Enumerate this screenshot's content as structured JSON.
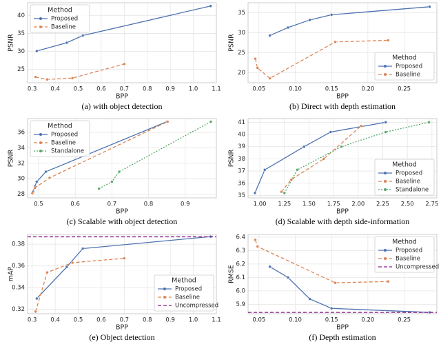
{
  "chart_data": [
    {
      "type": "line",
      "caption": "(a) with object detection",
      "xlabel": "BPP",
      "ylabel": "PSNR",
      "xlim": [
        0.28,
        1.1
      ],
      "ylim": [
        21.3,
        43.5
      ],
      "xticks": [
        0.3,
        0.4,
        0.5,
        0.6,
        0.7,
        0.8,
        0.9,
        {
          "value": 1,
          "label": "1.0"
        },
        1.1
      ],
      "yticks": [
        25,
        30,
        35,
        40
      ],
      "grid": true,
      "legend_title": "Method",
      "legend": "upper left",
      "series": [
        {
          "name": "Proposed",
          "color": "#4c72b0",
          "style": "solid",
          "x": [
            0.32,
            0.45,
            0.52,
            1.075
          ],
          "values": [
            30.1,
            32.4,
            34.4,
            42.6
          ]
        },
        {
          "name": "Baseline",
          "color": "#dd8452",
          "style": "dashed",
          "x": [
            0.315,
            0.365,
            0.475,
            0.7
          ],
          "values": [
            22.9,
            22.2,
            22.6,
            26.5
          ]
        }
      ]
    },
    {
      "type": "line",
      "caption": "(b) Direct with depth estimation",
      "xlabel": "BPP",
      "ylabel": "PSNR",
      "xlim": [
        0.035,
        0.295
      ],
      "ylim": [
        17.5,
        37.5
      ],
      "xticks": [
        0.05,
        {
          "value": 0.1,
          "label": "0.10"
        },
        0.15,
        {
          "value": 0.2,
          "label": "0.20"
        },
        0.25
      ],
      "yticks": [
        20,
        25,
        30,
        35
      ],
      "grid": true,
      "legend_title": "Method",
      "legend": "lower right",
      "series": [
        {
          "name": "Proposed",
          "color": "#4c72b0",
          "style": "solid",
          "x": [
            0.065,
            0.09,
            0.12,
            0.15,
            0.285
          ],
          "values": [
            29.3,
            31.3,
            33.2,
            34.5,
            36.5
          ]
        },
        {
          "name": "Baseline",
          "color": "#dd8452",
          "style": "dashed",
          "x": [
            0.045,
            0.048,
            0.065,
            0.155,
            0.228
          ],
          "values": [
            23.5,
            21.2,
            18.6,
            27.7,
            28.1
          ]
        }
      ]
    },
    {
      "type": "line",
      "caption": "(c) Scalable with object detection",
      "xlabel": "BPP",
      "ylabel": "PSNR",
      "xlim": [
        0.47,
        0.985
      ],
      "ylim": [
        27.5,
        37.8
      ],
      "xticks": [
        0.5,
        0.6,
        0.7,
        0.8,
        0.9
      ],
      "yticks": [
        28,
        30,
        32,
        34,
        36
      ],
      "grid": true,
      "legend_title": "Method",
      "legend": "upper left",
      "series": [
        {
          "name": "Proposed",
          "color": "#4c72b0",
          "style": "solid",
          "x": [
            0.485,
            0.49,
            0.495,
            0.52,
            0.85
          ],
          "values": [
            28.3,
            29.0,
            29.6,
            30.9,
            37.4
          ]
        },
        {
          "name": "Baseline",
          "color": "#dd8452",
          "style": "dashed",
          "x": [
            0.483,
            0.49,
            0.53,
            0.852
          ],
          "values": [
            28.1,
            28.8,
            30.1,
            37.4
          ]
        },
        {
          "name": "Standalone",
          "color": "#55a868",
          "style": "dotted",
          "x": [
            0.665,
            0.7,
            0.72,
            0.97
          ],
          "values": [
            28.7,
            29.6,
            30.9,
            37.4
          ]
        }
      ]
    },
    {
      "type": "line",
      "caption": "(d) Scalable with depth side-information",
      "xlabel": "BPP",
      "ylabel": "PSNR",
      "xlim": [
        0.88,
        2.8
      ],
      "ylim": [
        34.8,
        41.3
      ],
      "xticks": [
        {
          "value": 1,
          "label": "1.00"
        },
        1.25,
        {
          "value": 1.5,
          "label": "1.50"
        },
        1.75,
        {
          "value": 2,
          "label": "2.00"
        },
        2.25,
        {
          "value": 2.5,
          "label": "2.50"
        },
        2.75
      ],
      "yticks": [
        35,
        36,
        37,
        38,
        39,
        40,
        41
      ],
      "grid": true,
      "legend_title": "Method",
      "legend": "lower right",
      "series": [
        {
          "name": "Proposed",
          "color": "#4c72b0",
          "style": "solid",
          "x": [
            0.95,
            1.05,
            1.45,
            1.72,
            2.28
          ],
          "values": [
            35.2,
            37.1,
            39.0,
            40.2,
            41.0
          ]
        },
        {
          "name": "Baseline",
          "color": "#dd8452",
          "style": "dashed",
          "x": [
            1.22,
            1.32,
            1.65,
            2.03
          ],
          "values": [
            35.3,
            36.3,
            38.0,
            40.7
          ]
        },
        {
          "name": "Standalone",
          "color": "#55a868",
          "style": "dotted",
          "x": [
            1.25,
            1.38,
            1.83,
            2.28,
            2.72
          ],
          "values": [
            35.2,
            37.1,
            39.0,
            40.2,
            41.0
          ]
        }
      ]
    },
    {
      "type": "line",
      "caption": "(e) Object detection",
      "xlabel": "BPP",
      "ylabel": "mAP",
      "xlim": [
        0.28,
        1.1
      ],
      "ylim": [
        0.316,
        0.389
      ],
      "xticks": [
        0.3,
        0.4,
        0.5,
        0.6,
        0.7,
        0.8,
        0.9,
        {
          "value": 1,
          "label": "1.0"
        },
        1.1
      ],
      "yticks": [
        0.32,
        0.34,
        0.36,
        0.38
      ],
      "grid": true,
      "legend_title": "Method",
      "legend": "lower right",
      "series": [
        {
          "name": "Proposed",
          "color": "#4c72b0",
          "style": "solid",
          "x": [
            0.32,
            0.45,
            0.52,
            1.075
          ],
          "values": [
            0.33,
            0.359,
            0.376,
            0.387
          ]
        },
        {
          "name": "Baseline",
          "color": "#dd8452",
          "style": "dashed",
          "x": [
            0.315,
            0.365,
            0.475,
            0.7
          ],
          "values": [
            0.318,
            0.354,
            0.363,
            0.367
          ]
        },
        {
          "name": "Uncompressed",
          "color": "#8b1a89",
          "style": "dashed",
          "hline": 0.3868
        }
      ]
    },
    {
      "type": "line",
      "caption": "(f) Depth estimation",
      "xlabel": "BPP",
      "ylabel": "RMSE",
      "xlim": [
        0.035,
        0.295
      ],
      "ylim": [
        5.83,
        6.42
      ],
      "xticks": [
        0.05,
        {
          "value": 0.1,
          "label": "0.10"
        },
        0.15,
        {
          "value": 0.2,
          "label": "0.20"
        },
        0.25
      ],
      "yticks": [
        5.9,
        {
          "value": 6,
          "label": "6.0"
        },
        6.1,
        6.2,
        6.3,
        6.4
      ],
      "grid": true,
      "legend_title": "Method",
      "legend": "upper right",
      "series": [
        {
          "name": "Proposed",
          "color": "#4c72b0",
          "style": "solid",
          "x": [
            0.065,
            0.09,
            0.12,
            0.15,
            0.285
          ],
          "values": [
            6.18,
            6.1,
            5.94,
            5.87,
            5.84
          ]
        },
        {
          "name": "Baseline",
          "color": "#dd8452",
          "style": "dashed",
          "x": [
            0.045,
            0.048,
            0.155,
            0.228
          ],
          "values": [
            6.38,
            6.33,
            6.06,
            6.07
          ]
        },
        {
          "name": "Uncompressed",
          "color": "#8b1a89",
          "style": "dashed",
          "hline": 5.84
        }
      ]
    }
  ]
}
